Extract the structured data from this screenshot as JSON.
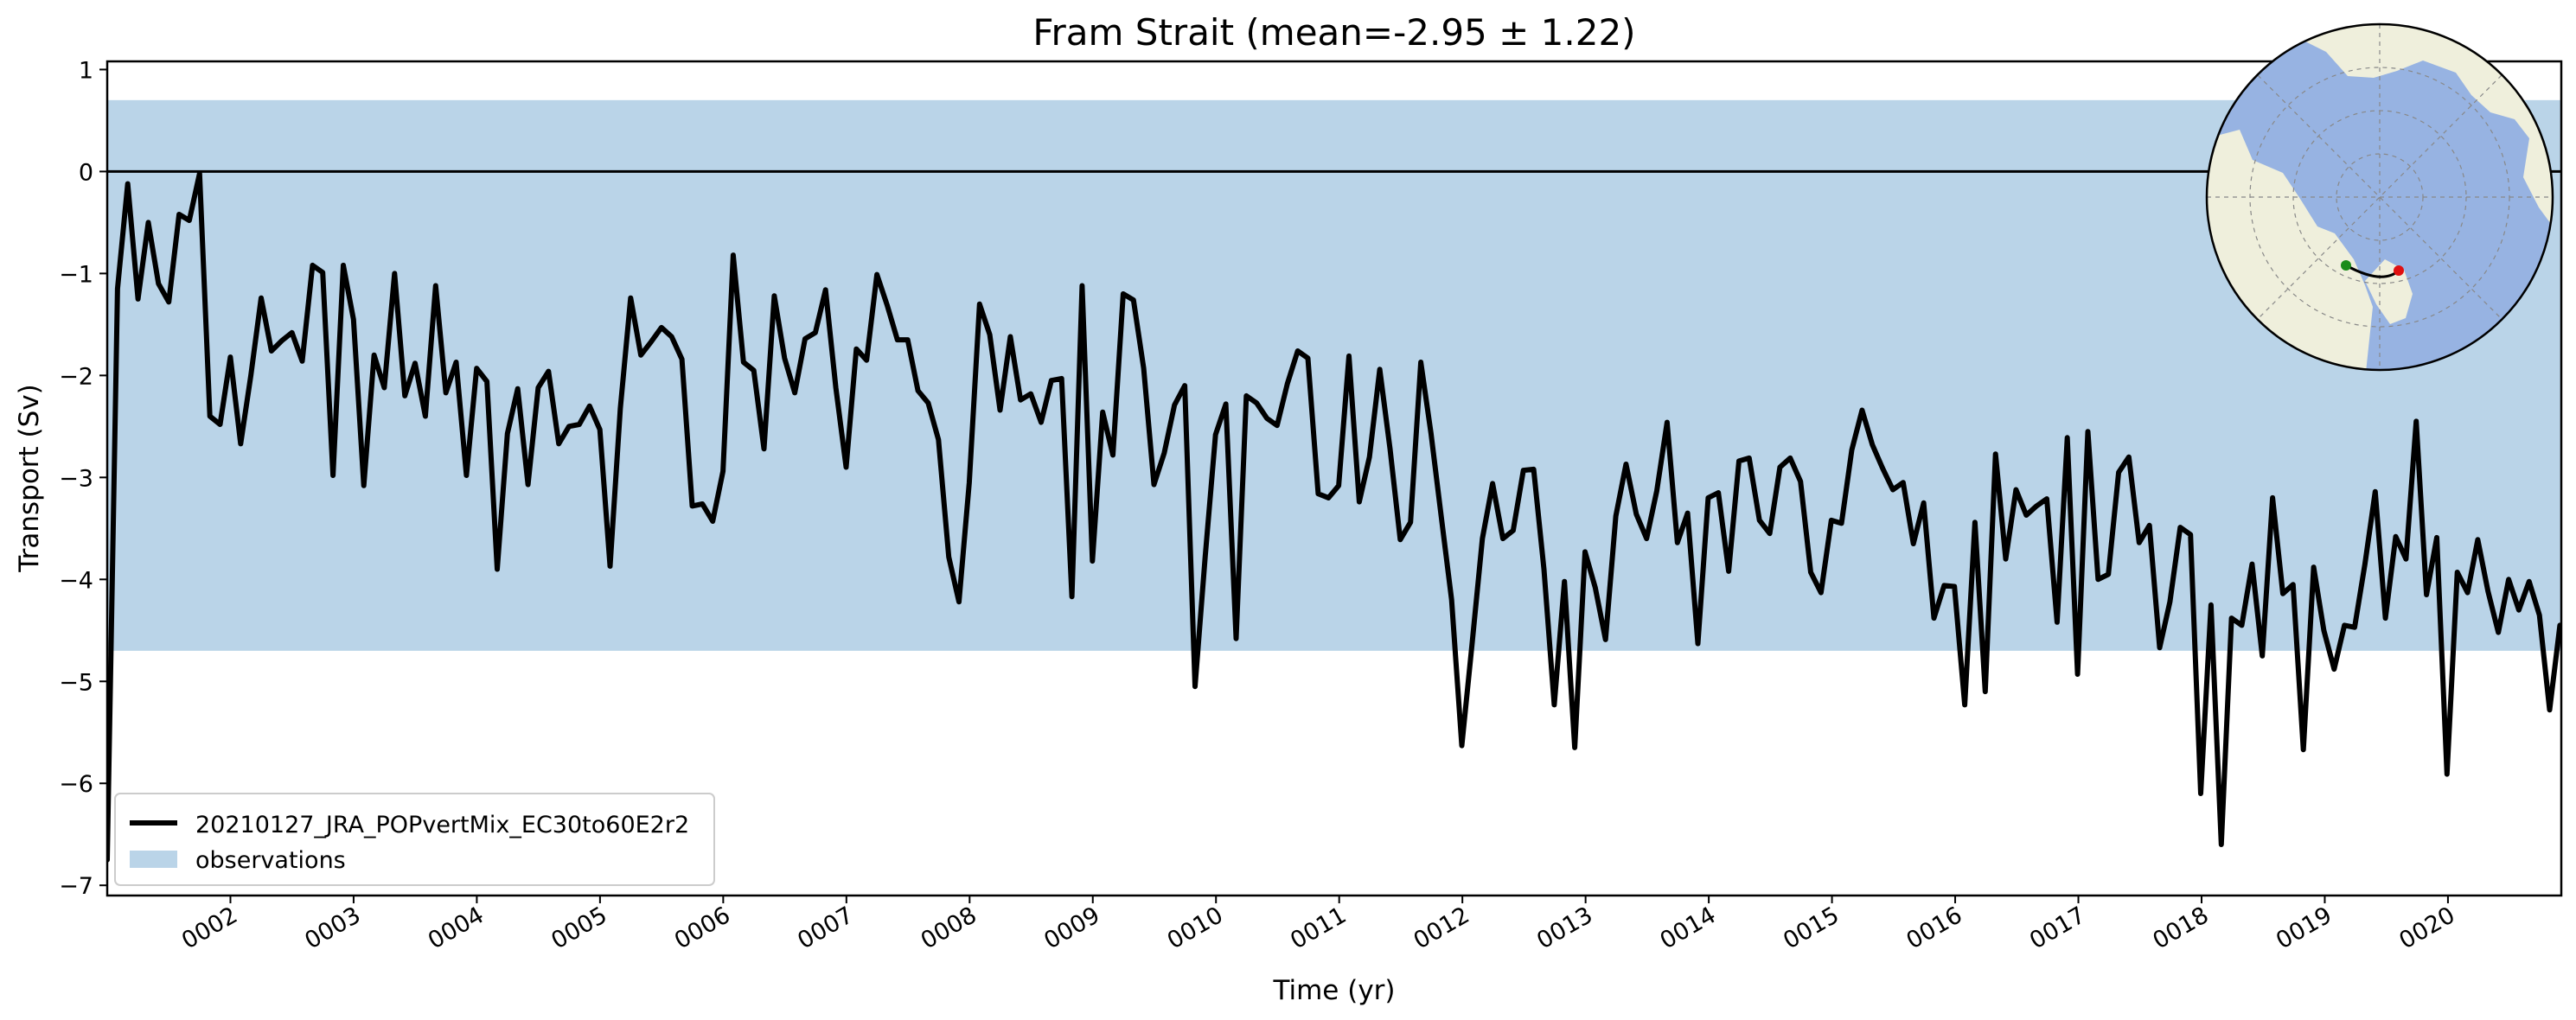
{
  "chart_data": {
    "type": "line",
    "title": "Fram Strait (mean=-2.95 ± 1.22)",
    "xlabel": "Time (yr)",
    "ylabel": "Transport (Sv)",
    "xlim": [
      1,
      20.92
    ],
    "ylim": [
      -7.1,
      1.08
    ],
    "yticks": [
      1,
      0,
      -1,
      -2,
      -3,
      -4,
      -5,
      -6,
      -7
    ],
    "ytick_labels": [
      "1",
      "0",
      "−1",
      "−2",
      "−3",
      "−4",
      "−5",
      "−6",
      "−7"
    ],
    "xticks": [
      2,
      3,
      4,
      5,
      6,
      7,
      8,
      9,
      10,
      11,
      12,
      13,
      14,
      15,
      16,
      17,
      18,
      19,
      20
    ],
    "xtick_labels": [
      "0002",
      "0003",
      "0004",
      "0005",
      "0006",
      "0007",
      "0008",
      "0009",
      "0010",
      "0011",
      "0012",
      "0013",
      "0014",
      "0015",
      "0016",
      "0017",
      "0018",
      "0019",
      "0020"
    ],
    "grid": false,
    "legend_position": "lower-left",
    "reference_line": {
      "y": 0,
      "color": "#000000"
    },
    "observations_band": {
      "name": "observations",
      "ymin": -4.7,
      "ymax": 0.7,
      "color": "#bad4e8"
    },
    "series": [
      {
        "name": "20210127_JRA_POPvertMix_EC30to60E2r2",
        "color": "#000000",
        "x_start": 1.0,
        "x_step": 0.0833,
        "values": [
          -6.75,
          -1.15,
          -0.12,
          -1.25,
          -0.5,
          -1.1,
          -1.28,
          -0.42,
          -0.48,
          -0.02,
          -2.4,
          -2.48,
          -1.82,
          -2.67,
          -2.0,
          -1.24,
          -1.76,
          -1.66,
          -1.58,
          -1.86,
          -0.92,
          -0.99,
          -2.98,
          -0.92,
          -1.45,
          -3.08,
          -1.8,
          -2.12,
          -1.0,
          -2.2,
          -1.88,
          -2.4,
          -1.12,
          -2.17,
          -1.87,
          -2.98,
          -1.93,
          -2.06,
          -3.9,
          -2.57,
          -2.13,
          -3.07,
          -2.12,
          -1.96,
          -2.67,
          -2.5,
          -2.48,
          -2.3,
          -2.53,
          -3.87,
          -2.32,
          -1.24,
          -1.8,
          -1.67,
          -1.53,
          -1.62,
          -1.84,
          -3.28,
          -3.26,
          -3.43,
          -2.94,
          -0.82,
          -1.87,
          -1.95,
          -2.72,
          -1.22,
          -1.83,
          -2.17,
          -1.64,
          -1.58,
          -1.16,
          -2.12,
          -2.9,
          -1.74,
          -1.85,
          -1.01,
          -1.31,
          -1.65,
          -1.65,
          -2.15,
          -2.27,
          -2.63,
          -3.78,
          -4.22,
          -3.05,
          -1.3,
          -1.6,
          -2.34,
          -1.62,
          -2.24,
          -2.18,
          -2.46,
          -2.05,
          -2.03,
          -4.17,
          -1.12,
          -3.82,
          -2.36,
          -2.78,
          -1.2,
          -1.26,
          -1.93,
          -3.07,
          -2.76,
          -2.29,
          -2.1,
          -5.05,
          -3.77,
          -2.58,
          -2.28,
          -4.58,
          -2.2,
          -2.27,
          -2.42,
          -2.49,
          -2.08,
          -1.76,
          -1.83,
          -3.16,
          -3.2,
          -3.08,
          -1.81,
          -3.24,
          -2.8,
          -1.94,
          -2.72,
          -3.61,
          -3.44,
          -1.87,
          -2.57,
          -3.39,
          -4.2,
          -5.63,
          -4.63,
          -3.6,
          -3.06,
          -3.6,
          -3.52,
          -2.93,
          -2.92,
          -3.9,
          -5.23,
          -4.02,
          -5.65,
          -3.73,
          -4.08,
          -4.59,
          -3.38,
          -2.87,
          -3.36,
          -3.6,
          -3.13,
          -2.46,
          -3.64,
          -3.35,
          -4.63,
          -3.2,
          -3.15,
          -3.92,
          -2.84,
          -2.81,
          -3.42,
          -3.55,
          -2.9,
          -2.81,
          -3.04,
          -3.93,
          -4.13,
          -3.42,
          -3.45,
          -2.73,
          -2.34,
          -2.68,
          -2.91,
          -3.12,
          -3.05,
          -3.65,
          -3.25,
          -4.38,
          -4.06,
          -4.07,
          -5.23,
          -3.44,
          -5.1,
          -2.77,
          -3.8,
          -3.12,
          -3.37,
          -3.28,
          -3.21,
          -4.42,
          -2.61,
          -4.93,
          -2.55,
          -4.0,
          -3.95,
          -2.95,
          -2.8,
          -3.64,
          -3.47,
          -4.67,
          -4.22,
          -3.49,
          -3.56,
          -6.1,
          -4.25,
          -6.6,
          -4.38,
          -4.45,
          -3.85,
          -4.75,
          -3.2,
          -4.14,
          -4.05,
          -5.67,
          -3.88,
          -4.5,
          -4.88,
          -4.45,
          -4.47,
          -3.85,
          -3.14,
          -4.38,
          -3.58,
          -3.8,
          -2.45,
          -4.15,
          -3.59,
          -5.91,
          -3.93,
          -4.13,
          -3.61,
          -4.12,
          -4.52,
          -4.0,
          -4.3,
          -4.02,
          -4.35,
          -5.28,
          -4.45
        ]
      }
    ]
  },
  "inset_map": {
    "icon": "arctic-polar-map-icon",
    "ocean_color": "#97b3e2",
    "land_color": "#efefdc",
    "section_start_color": "#1a8c1a",
    "section_end_color": "#e01010"
  }
}
